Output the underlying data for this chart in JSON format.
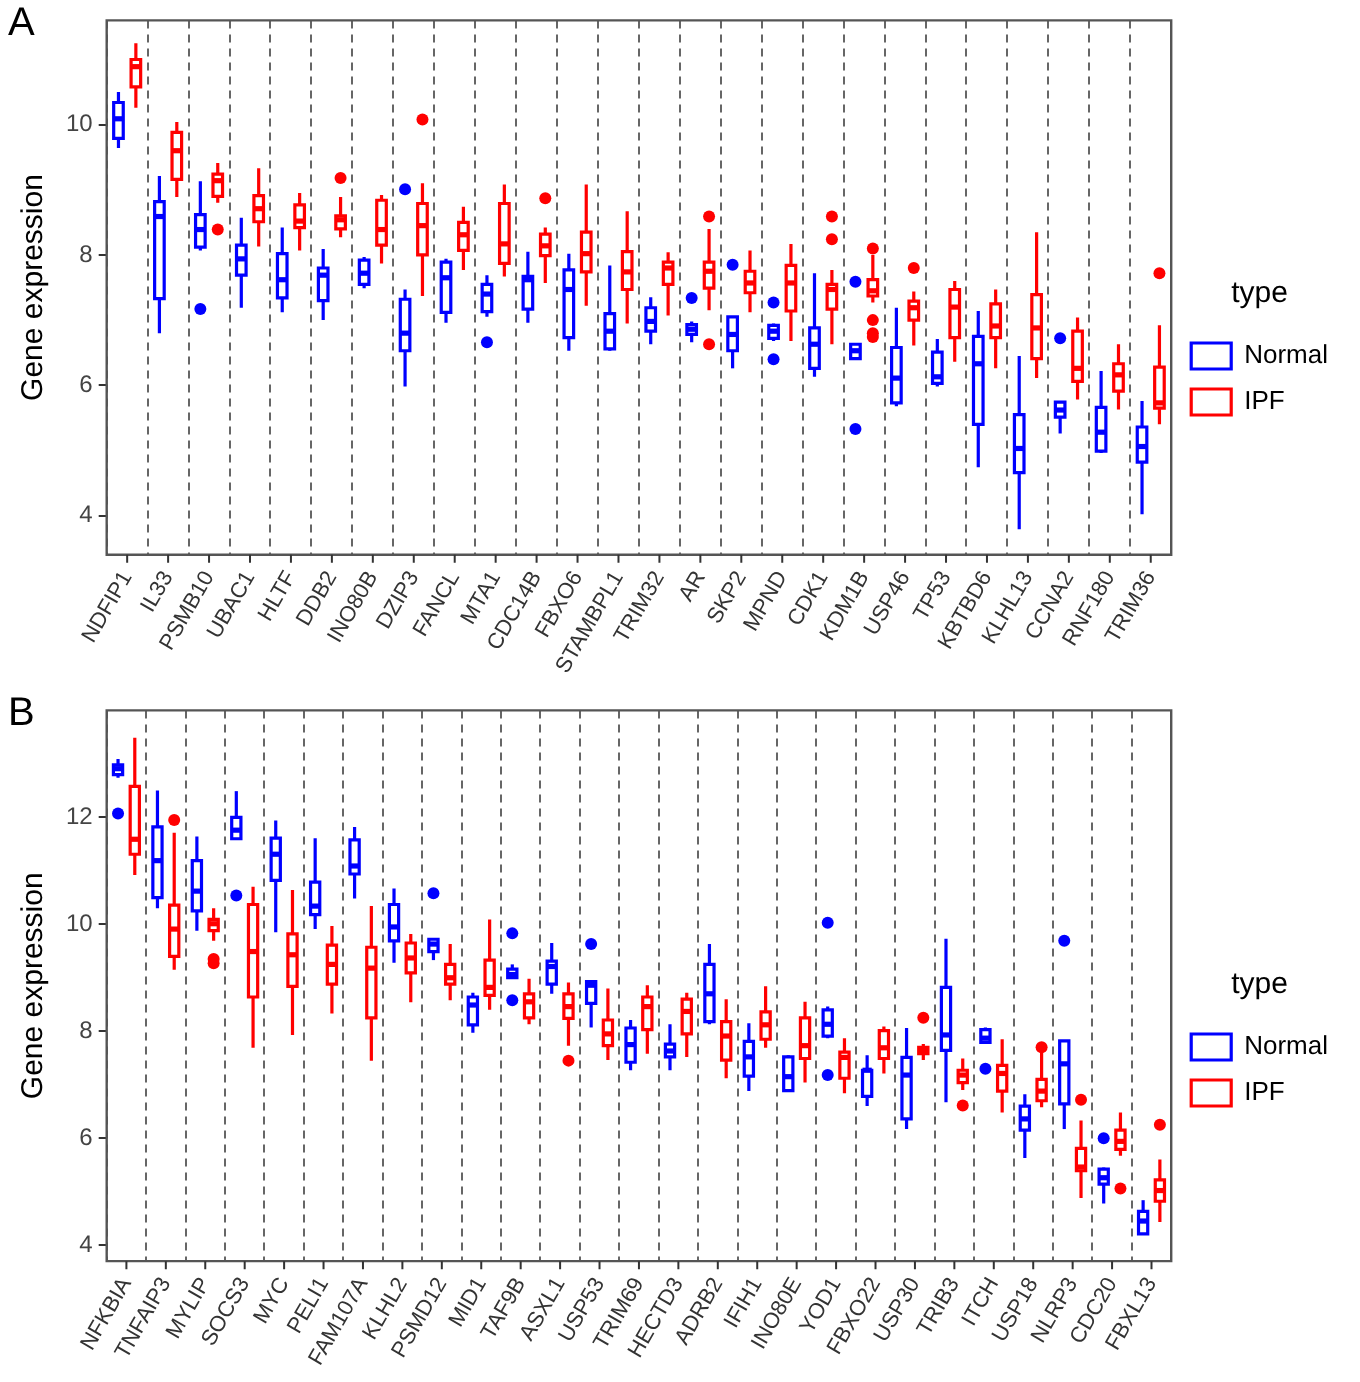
{
  "chart_data": [
    {
      "type": "box",
      "annotations": [
        "A"
      ],
      "ylabel": "Gene expression",
      "legend_title": "type",
      "legend": "right",
      "grid": "x",
      "ylim": [
        3.4,
        11.6
      ],
      "yticks": [
        4,
        6,
        8,
        10
      ],
      "categories": [
        "NDFIP1",
        "IL33",
        "PSMB10",
        "UBAC1",
        "HLTF",
        "DDB2",
        "INO80B",
        "DZIP3",
        "FANCL",
        "MTA1",
        "CDC14B",
        "FBXO6",
        "STAMBPL1",
        "TRIM32",
        "AR",
        "SKP2",
        "MPND",
        "CDK1",
        "KDM1B",
        "USP46",
        "TP53",
        "KBTBD6",
        "KLHL13",
        "CCNA2",
        "RNF180",
        "TRIM36"
      ],
      "series": [
        {
          "name": "Normal",
          "color": "#0000ff",
          "boxes": [
            {
              "low": 9.64,
              "q1": 9.79,
              "median": 10.09,
              "q3": 10.34,
              "high": 10.5
            },
            {
              "low": 6.8,
              "q1": 7.33,
              "median": 8.59,
              "q3": 8.82,
              "high": 9.21
            },
            {
              "low": 8.07,
              "q1": 8.12,
              "median": 8.39,
              "q3": 8.62,
              "high": 9.13,
              "outliers": [
                7.17
              ]
            },
            {
              "low": 7.19,
              "q1": 7.69,
              "median": 7.94,
              "q3": 8.15,
              "high": 8.57
            },
            {
              "low": 7.12,
              "q1": 7.34,
              "median": 7.62,
              "q3": 8.02,
              "high": 8.42
            },
            {
              "low": 7.0,
              "q1": 7.3,
              "median": 7.69,
              "q3": 7.8,
              "high": 8.09
            },
            {
              "low": 7.49,
              "q1": 7.55,
              "median": 7.72,
              "q3": 7.92,
              "high": 7.97
            },
            {
              "low": 5.98,
              "q1": 6.53,
              "median": 6.8,
              "q3": 7.32,
              "high": 7.47,
              "outliers": [
                9.01
              ]
            },
            {
              "low": 6.96,
              "q1": 7.12,
              "median": 7.65,
              "q3": 7.89,
              "high": 7.94
            },
            {
              "low": 7.05,
              "q1": 7.13,
              "median": 7.4,
              "q3": 7.55,
              "high": 7.69,
              "outliers": [
                6.66
              ]
            },
            {
              "low": 6.96,
              "q1": 7.17,
              "median": 7.62,
              "q3": 7.67,
              "high": 8.05
            },
            {
              "low": 6.53,
              "q1": 6.73,
              "median": 7.47,
              "q3": 7.77,
              "high": 8.02
            },
            {
              "low": 6.53,
              "q1": 6.56,
              "median": 6.83,
              "q3": 7.1,
              "high": 7.84
            },
            {
              "low": 6.63,
              "q1": 6.83,
              "median": 6.98,
              "q3": 7.19,
              "high": 7.35
            },
            {
              "low": 6.66,
              "q1": 6.78,
              "median": 6.86,
              "q3": 6.93,
              "high": 6.98,
              "outliers": [
                7.34
              ]
            },
            {
              "low": 6.26,
              "q1": 6.53,
              "median": 6.78,
              "q3": 7.05,
              "high": 7.05,
              "outliers": [
                7.85
              ]
            },
            {
              "low": 6.68,
              "q1": 6.72,
              "median": 6.83,
              "q3": 6.92,
              "high": 6.95,
              "outliers": [
                7.27,
                6.4
              ]
            },
            {
              "low": 6.13,
              "q1": 6.26,
              "median": 6.63,
              "q3": 6.88,
              "high": 7.72
            },
            {
              "low": 6.41,
              "q1": 6.41,
              "median": 6.53,
              "q3": 6.63,
              "high": 6.63,
              "outliers": [
                7.59,
                5.33
              ]
            },
            {
              "low": 5.68,
              "q1": 5.73,
              "median": 6.11,
              "q3": 6.58,
              "high": 7.19
            },
            {
              "low": 5.98,
              "q1": 6.03,
              "median": 6.13,
              "q3": 6.51,
              "high": 6.71
            },
            {
              "low": 4.74,
              "q1": 5.4,
              "median": 6.33,
              "q3": 6.75,
              "high": 7.14
            },
            {
              "low": 3.79,
              "q1": 4.66,
              "median": 5.03,
              "q3": 5.55,
              "high": 6.45
            },
            {
              "low": 5.26,
              "q1": 5.51,
              "median": 5.62,
              "q3": 5.74,
              "high": 5.74,
              "outliers": [
                6.72
              ]
            },
            {
              "low": 4.96,
              "q1": 4.99,
              "median": 5.28,
              "q3": 5.66,
              "high": 6.22
            },
            {
              "low": 4.02,
              "q1": 4.82,
              "median": 5.06,
              "q3": 5.36,
              "high": 5.76
            }
          ]
        },
        {
          "name": "IPF",
          "color": "#ff0000",
          "boxes": [
            {
              "low": 10.26,
              "q1": 10.58,
              "median": 10.89,
              "q3": 11.0,
              "high": 11.25
            },
            {
              "low": 8.89,
              "q1": 9.16,
              "median": 9.6,
              "q3": 9.88,
              "high": 10.04
            },
            {
              "low": 8.8,
              "q1": 8.9,
              "median": 9.14,
              "q3": 9.24,
              "high": 9.41,
              "outliers": [
                8.39
              ]
            },
            {
              "low": 8.13,
              "q1": 8.51,
              "median": 8.71,
              "q3": 8.91,
              "high": 9.33
            },
            {
              "low": 8.07,
              "q1": 8.42,
              "median": 8.52,
              "q3": 8.77,
              "high": 8.95
            },
            {
              "low": 8.27,
              "q1": 8.4,
              "median": 8.54,
              "q3": 8.6,
              "high": 8.89,
              "outliers": [
                9.18
              ]
            },
            {
              "low": 7.87,
              "q1": 8.15,
              "median": 8.39,
              "q3": 8.84,
              "high": 8.92
            },
            {
              "low": 7.37,
              "q1": 8.0,
              "median": 8.45,
              "q3": 8.79,
              "high": 9.1,
              "outliers": [
                10.08
              ]
            },
            {
              "low": 7.77,
              "q1": 8.07,
              "median": 8.31,
              "q3": 8.5,
              "high": 8.74
            },
            {
              "low": 7.67,
              "q1": 7.87,
              "median": 8.17,
              "q3": 8.79,
              "high": 9.08
            },
            {
              "low": 7.57,
              "q1": 7.99,
              "median": 8.14,
              "q3": 8.32,
              "high": 8.42,
              "outliers": [
                8.87
              ]
            },
            {
              "low": 7.22,
              "q1": 7.74,
              "median": 8.02,
              "q3": 8.35,
              "high": 9.08
            },
            {
              "low": 6.95,
              "q1": 7.47,
              "median": 7.74,
              "q3": 8.05,
              "high": 8.67
            },
            {
              "low": 7.07,
              "q1": 7.55,
              "median": 7.8,
              "q3": 7.89,
              "high": 8.04
            },
            {
              "low": 7.15,
              "q1": 7.49,
              "median": 7.75,
              "q3": 7.89,
              "high": 8.4,
              "outliers": [
                8.59,
                6.63
              ]
            },
            {
              "low": 7.12,
              "q1": 7.42,
              "median": 7.57,
              "q3": 7.75,
              "high": 8.07
            },
            {
              "low": 6.68,
              "q1": 7.14,
              "median": 7.57,
              "q3": 7.84,
              "high": 8.17
            },
            {
              "low": 6.63,
              "q1": 7.17,
              "median": 7.47,
              "q3": 7.55,
              "high": 7.77,
              "outliers": [
                8.59,
                8.24
              ]
            },
            {
              "low": 7.27,
              "q1": 7.37,
              "median": 7.45,
              "q3": 7.62,
              "high": 8.0,
              "outliers": [
                8.1,
                7.0,
                6.8,
                6.74
              ]
            },
            {
              "low": 6.61,
              "q1": 7.0,
              "median": 7.19,
              "q3": 7.29,
              "high": 7.44,
              "outliers": [
                7.8
              ]
            },
            {
              "low": 6.36,
              "q1": 6.73,
              "median": 7.2,
              "q3": 7.47,
              "high": 7.6
            },
            {
              "low": 6.26,
              "q1": 6.73,
              "median": 6.91,
              "q3": 7.25,
              "high": 7.47
            },
            {
              "low": 6.11,
              "q1": 6.41,
              "median": 6.88,
              "q3": 7.39,
              "high": 8.35
            },
            {
              "low": 5.78,
              "q1": 6.06,
              "median": 6.26,
              "q3": 6.83,
              "high": 7.04
            },
            {
              "low": 5.63,
              "q1": 5.91,
              "median": 6.16,
              "q3": 6.33,
              "high": 6.63
            },
            {
              "low": 5.4,
              "q1": 5.65,
              "median": 5.73,
              "q3": 6.28,
              "high": 6.92,
              "outliers": [
                7.72
              ]
            }
          ]
        }
      ]
    },
    {
      "type": "box",
      "annotations": [
        "B"
      ],
      "ylabel": "Gene expression",
      "legend_title": "type",
      "legend": "right",
      "grid": "x",
      "ylim": [
        3.7,
        14.0
      ],
      "yticks": [
        4,
        6,
        8,
        10,
        12
      ],
      "categories": [
        "NFKBIA",
        "TNFAIP3",
        "MYLIP",
        "SOCS3",
        "MYC",
        "PELI1",
        "FAM107A",
        "KLHL2",
        "PSMD12",
        "MID1",
        "TAF9B",
        "ASXL1",
        "USP53",
        "TRIM69",
        "HECTD3",
        "ADRB2",
        "IFIH1",
        "INO80E",
        "YOD1",
        "FBXO22",
        "USP30",
        "TRIB3",
        "ITCH",
        "USP18",
        "NLRP3",
        "CDC20",
        "FBXL13"
      ],
      "series": [
        {
          "name": "Normal",
          "color": "#0000ff",
          "boxes": [
            {
              "low": 12.74,
              "q1": 12.8,
              "median": 12.91,
              "q3": 12.98,
              "high": 13.09,
              "outliers": [
                12.07
              ]
            },
            {
              "low": 10.3,
              "q1": 10.5,
              "median": 11.19,
              "q3": 11.82,
              "high": 12.5
            },
            {
              "low": 9.88,
              "q1": 10.25,
              "median": 10.62,
              "q3": 11.19,
              "high": 11.64
            },
            {
              "low": 11.6,
              "q1": 11.6,
              "median": 11.76,
              "q3": 12.0,
              "high": 12.49,
              "outliers": [
                10.54
              ]
            },
            {
              "low": 9.85,
              "q1": 10.82,
              "median": 11.31,
              "q3": 11.61,
              "high": 11.94
            },
            {
              "low": 9.91,
              "q1": 10.18,
              "median": 10.34,
              "q3": 10.79,
              "high": 11.61
            },
            {
              "low": 10.48,
              "q1": 10.94,
              "median": 11.09,
              "q3": 11.58,
              "high": 11.82
            },
            {
              "low": 9.28,
              "q1": 9.69,
              "median": 9.95,
              "q3": 10.37,
              "high": 10.67
            },
            {
              "low": 9.33,
              "q1": 9.49,
              "median": 9.63,
              "q3": 9.72,
              "high": 9.72,
              "outliers": [
                10.58
              ]
            },
            {
              "low": 7.97,
              "q1": 8.12,
              "median": 8.49,
              "q3": 8.64,
              "high": 8.72
            },
            {
              "low": 9.0,
              "q1": 9.0,
              "median": 9.06,
              "q3": 9.16,
              "high": 9.25,
              "outliers": [
                9.83,
                8.58
              ]
            },
            {
              "low": 8.7,
              "q1": 8.88,
              "median": 9.21,
              "q3": 9.31,
              "high": 9.65
            },
            {
              "low": 8.07,
              "q1": 8.52,
              "median": 8.86,
              "q3": 8.93,
              "high": 8.93,
              "outliers": [
                9.63
              ]
            },
            {
              "low": 7.27,
              "q1": 7.42,
              "median": 7.75,
              "q3": 8.06,
              "high": 8.21
            },
            {
              "low": 7.27,
              "q1": 7.52,
              "median": 7.63,
              "q3": 7.76,
              "high": 8.13
            },
            {
              "low": 8.13,
              "q1": 8.18,
              "median": 8.7,
              "q3": 9.25,
              "high": 9.63
            },
            {
              "low": 6.88,
              "q1": 7.16,
              "median": 7.52,
              "q3": 7.81,
              "high": 8.15
            },
            {
              "low": 6.89,
              "q1": 6.89,
              "median": 7.15,
              "q3": 7.52,
              "high": 7.55
            },
            {
              "low": 7.87,
              "q1": 7.91,
              "median": 8.13,
              "q3": 8.4,
              "high": 8.46,
              "outliers": [
                10.03,
                7.18
              ]
            },
            {
              "low": 6.6,
              "q1": 6.78,
              "median": 7.27,
              "q3": 7.27,
              "high": 7.55
            },
            {
              "low": 6.17,
              "q1": 6.36,
              "median": 7.18,
              "q3": 7.51,
              "high": 8.06
            },
            {
              "low": 6.67,
              "q1": 7.64,
              "median": 7.93,
              "q3": 8.82,
              "high": 9.73
            },
            {
              "low": 7.79,
              "q1": 7.79,
              "median": 7.87,
              "q3": 8.03,
              "high": 8.07,
              "outliers": [
                7.3
              ]
            },
            {
              "low": 5.63,
              "q1": 6.15,
              "median": 6.36,
              "q3": 6.6,
              "high": 6.82
            },
            {
              "low": 6.17,
              "q1": 6.64,
              "median": 7.39,
              "q3": 7.82,
              "high": 7.82,
              "outliers": [
                9.69
              ]
            },
            {
              "low": 4.78,
              "q1": 5.14,
              "median": 5.26,
              "q3": 5.42,
              "high": 5.45,
              "outliers": [
                6.0
              ]
            },
            {
              "low": 4.21,
              "q1": 4.21,
              "median": 4.45,
              "q3": 4.63,
              "high": 4.84
            }
          ]
        },
        {
          "name": "IPF",
          "color": "#ff0000",
          "boxes": [
            {
              "low": 10.92,
              "q1": 11.31,
              "median": 11.59,
              "q3": 12.58,
              "high": 13.49
            },
            {
              "low": 9.15,
              "q1": 9.4,
              "median": 9.91,
              "q3": 10.36,
              "high": 11.71,
              "outliers": [
                11.95
              ]
            },
            {
              "low": 9.69,
              "q1": 9.88,
              "median": 10.01,
              "q3": 10.09,
              "high": 10.3,
              "outliers": [
                9.35,
                9.27
              ]
            },
            {
              "low": 7.69,
              "q1": 8.64,
              "median": 9.49,
              "q3": 10.37,
              "high": 10.7
            },
            {
              "low": 7.93,
              "q1": 8.84,
              "median": 9.43,
              "q3": 9.82,
              "high": 10.64
            },
            {
              "low": 8.33,
              "q1": 8.88,
              "median": 9.25,
              "q3": 9.61,
              "high": 9.97
            },
            {
              "low": 7.45,
              "q1": 8.25,
              "median": 9.18,
              "q3": 9.57,
              "high": 10.34
            },
            {
              "low": 8.54,
              "q1": 9.09,
              "median": 9.37,
              "q3": 9.65,
              "high": 9.82
            },
            {
              "low": 8.58,
              "q1": 8.88,
              "median": 9.0,
              "q3": 9.25,
              "high": 9.63
            },
            {
              "low": 8.4,
              "q1": 8.67,
              "median": 8.82,
              "q3": 9.33,
              "high": 10.09
            },
            {
              "low": 8.13,
              "q1": 8.25,
              "median": 8.55,
              "q3": 8.7,
              "high": 8.98
            },
            {
              "low": 7.73,
              "q1": 8.24,
              "median": 8.46,
              "q3": 8.7,
              "high": 8.91,
              "outliers": [
                7.45
              ]
            },
            {
              "low": 7.46,
              "q1": 7.73,
              "median": 7.95,
              "q3": 8.21,
              "high": 8.8
            },
            {
              "low": 7.58,
              "q1": 8.03,
              "median": 8.46,
              "q3": 8.64,
              "high": 8.86
            },
            {
              "low": 7.52,
              "q1": 7.95,
              "median": 8.37,
              "q3": 8.6,
              "high": 8.72
            },
            {
              "low": 7.12,
              "q1": 7.46,
              "median": 7.91,
              "q3": 8.18,
              "high": 8.6
            },
            {
              "low": 7.69,
              "q1": 7.85,
              "median": 8.12,
              "q3": 8.36,
              "high": 8.84
            },
            {
              "low": 7.04,
              "q1": 7.49,
              "median": 7.73,
              "q3": 8.25,
              "high": 8.55
            },
            {
              "low": 6.84,
              "q1": 7.12,
              "median": 7.51,
              "q3": 7.61,
              "high": 7.87
            },
            {
              "low": 7.21,
              "q1": 7.49,
              "median": 7.69,
              "q3": 8.01,
              "high": 8.09
            },
            {
              "low": 7.46,
              "q1": 7.58,
              "median": 7.64,
              "q3": 7.7,
              "high": 7.76,
              "outliers": [
                8.25
              ]
            },
            {
              "low": 6.9,
              "q1": 7.04,
              "median": 7.18,
              "q3": 7.27,
              "high": 7.49,
              "outliers": [
                6.61
              ]
            },
            {
              "low": 6.48,
              "q1": 6.88,
              "median": 7.21,
              "q3": 7.36,
              "high": 7.85
            },
            {
              "low": 6.58,
              "q1": 6.7,
              "median": 6.88,
              "q3": 7.1,
              "high": 7.61,
              "outliers": [
                7.7
              ]
            },
            {
              "low": 4.88,
              "q1": 5.39,
              "median": 5.46,
              "q3": 5.81,
              "high": 6.33,
              "outliers": [
                6.72
              ]
            },
            {
              "low": 5.67,
              "q1": 5.79,
              "median": 5.94,
              "q3": 6.15,
              "high": 6.48,
              "outliers": [
                5.06
              ]
            },
            {
              "low": 4.43,
              "q1": 4.82,
              "median": 5.02,
              "q3": 5.22,
              "high": 5.6,
              "outliers": [
                6.25
              ]
            }
          ]
        }
      ]
    }
  ]
}
